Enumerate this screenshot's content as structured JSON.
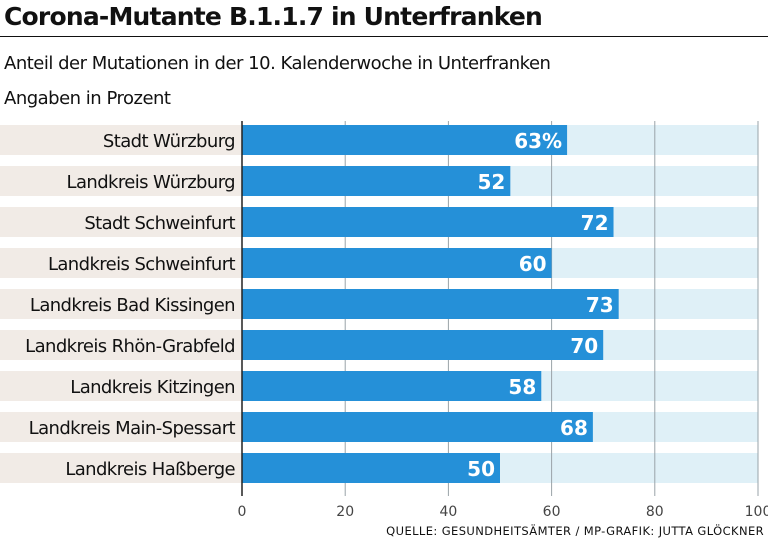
{
  "header": {
    "title": "Corona-Mutante B.1.1.7 in Unterfranken",
    "subtitle": "Anteil der Mutationen in der 10. Kalenderwoche in Unterfranken",
    "unit": "Angaben in Prozent"
  },
  "source": "QUELLE: GESUNDHEITSÄMTER / MP-GRAFIK: JUTTA GLÖCKNER",
  "chart_data": {
    "type": "bar",
    "orientation": "horizontal",
    "title": "Corona-Mutante B.1.1.7 in Unterfranken",
    "subtitle": "Anteil der Mutationen in der 10. Kalenderwoche in Unterfranken",
    "categories": [
      "Stadt Würzburg",
      "Landkreis Würzburg",
      "Stadt Schweinfurt",
      "Landkreis Schweinfurt",
      "Landkreis Bad Kissingen",
      "Landkreis Rhön-Grabfeld",
      "Landkreis Kitzingen",
      "Landkreis Main-Spessart",
      "Landkreis Haßberge"
    ],
    "values": [
      63,
      52,
      72,
      60,
      73,
      70,
      58,
      68,
      50
    ],
    "data_labels": [
      "63%",
      "52",
      "72",
      "60",
      "73",
      "70",
      "58",
      "68",
      "50"
    ],
    "xlim": [
      0,
      100
    ],
    "xticks": [
      0,
      20,
      40,
      60,
      80,
      100
    ],
    "grid": true,
    "colors": {
      "bar": "#2590d8",
      "track": "#dff0f7",
      "label_band": "#f1ebe6",
      "label_text": "#ffffff",
      "grid": "#9aa3a8"
    }
  }
}
